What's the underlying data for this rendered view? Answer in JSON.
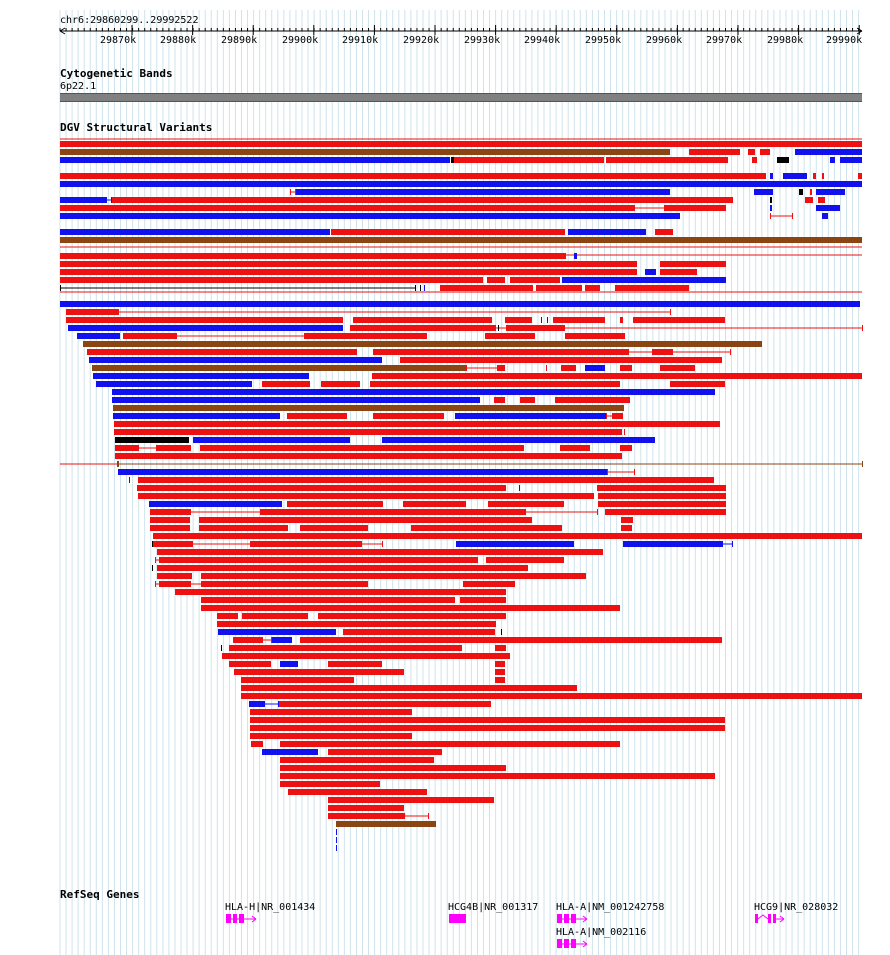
{
  "locus": "chr6:29860299..29992522",
  "ruler": {
    "tick_labels": [
      "29870k",
      "29880k",
      "29890k",
      "29900k",
      "29910k",
      "29920k",
      "29930k",
      "29940k",
      "29950k",
      "29960k",
      "29970k",
      "29980k",
      "29990k"
    ]
  },
  "tracks": {
    "cytoband": {
      "title": "Cytogenetic Bands",
      "band": "6p22.1"
    },
    "dgv": {
      "title": "DGV Structural Variants"
    },
    "refseq": {
      "title": "RefSeq Genes",
      "genes": [
        {
          "label": "HLA-H|NR_001434"
        },
        {
          "label": "HCG4B|NR_001317"
        },
        {
          "label": "HLA-A|NM_001242758"
        },
        {
          "label": "HLA-A|NM_002116"
        },
        {
          "label": "HCG9|NR_028032"
        }
      ]
    }
  },
  "colors": {
    "loss": "#ee1111",
    "gain": "#1111ee",
    "complex": "#8b4513",
    "other": "#000000",
    "gene": "#ff00ff",
    "grid": "#cfe3ec",
    "cytoband": "#808080"
  }
}
